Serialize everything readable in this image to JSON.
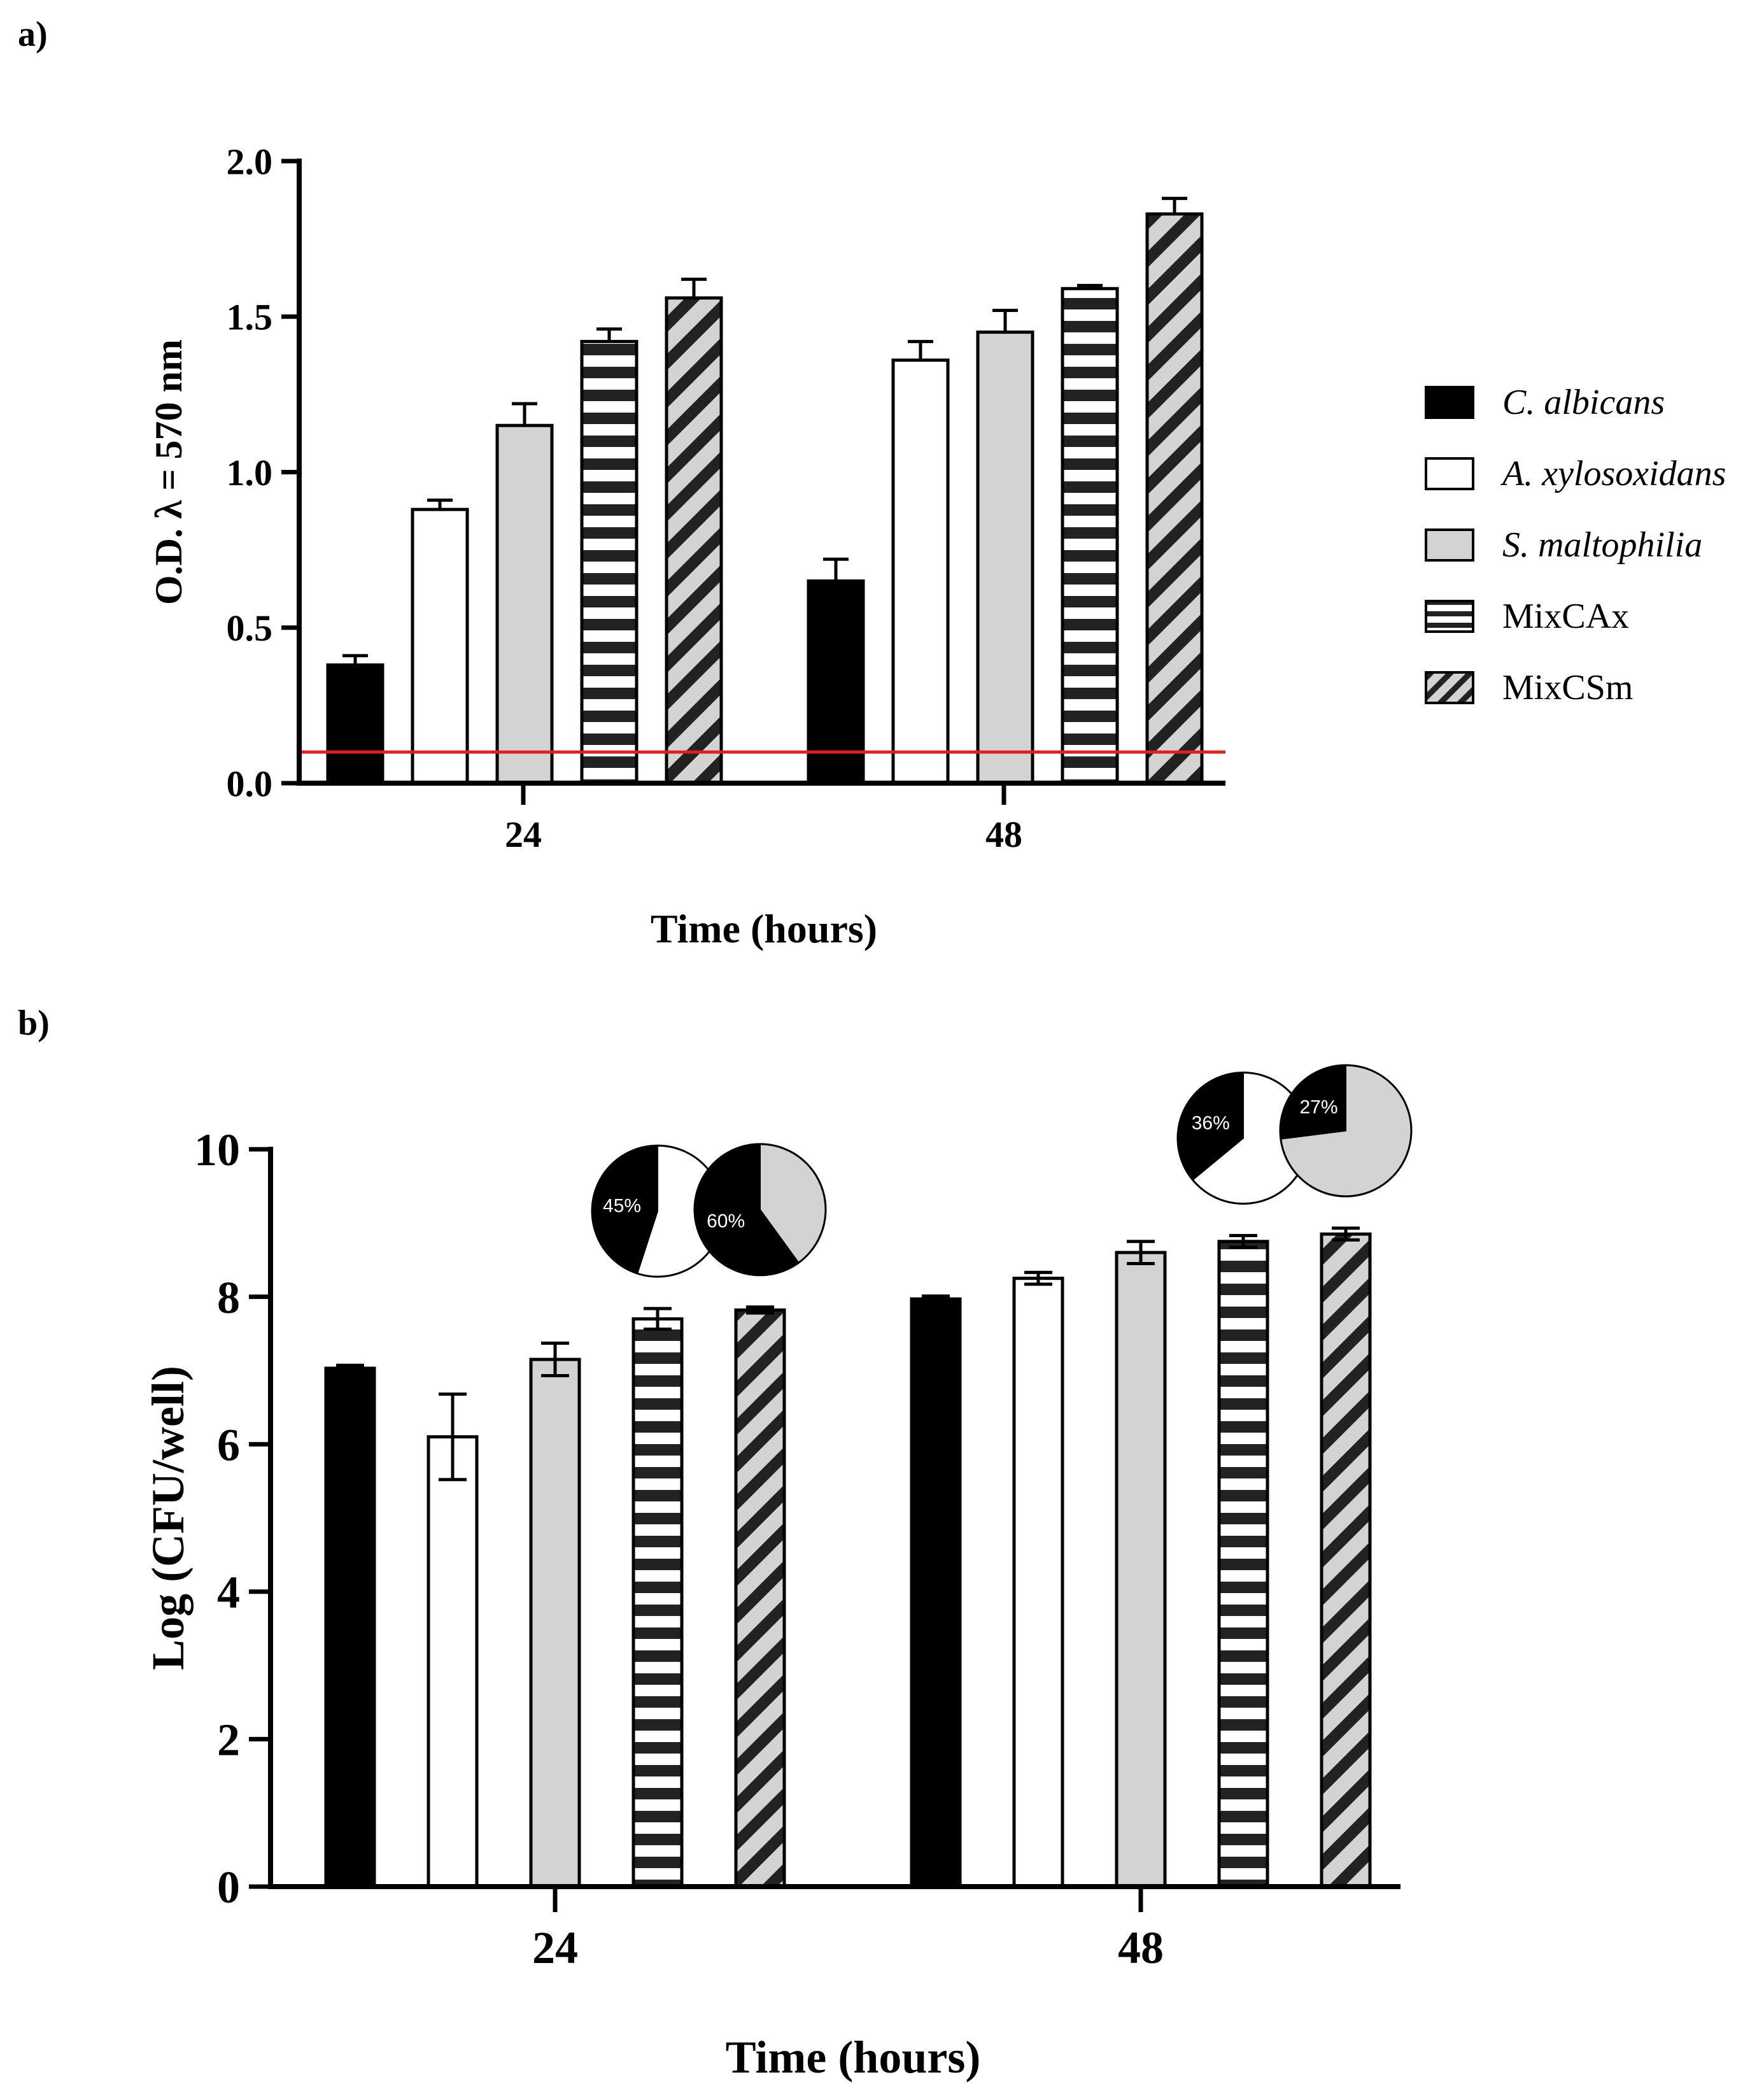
{
  "colors": {
    "c_albicans": "#000000",
    "a_xylosoxidans": "#ffffff",
    "s_maltophilia": "#d3d3d3",
    "stripe": "#222222",
    "threshold_line": "#e02020"
  },
  "legend": {
    "items": [
      {
        "label": "C. albicans",
        "italic": true,
        "pattern": "solid-black"
      },
      {
        "label": "A. xylosoxidans",
        "italic": true,
        "pattern": "white"
      },
      {
        "label": "S. maltophilia",
        "italic": true,
        "pattern": "grey"
      },
      {
        "label": "MixCAx",
        "italic": false,
        "pattern": "horizontal-stripes"
      },
      {
        "label": "MixCSm",
        "italic": false,
        "pattern": "diagonal-stripes"
      }
    ]
  },
  "chart_data": [
    {
      "panel_label": "a)",
      "type": "bar",
      "xlabel": "Time (hours)",
      "ylabel": "O.D. λ = 570 nm",
      "ylim": [
        0,
        2.0
      ],
      "yticks": [
        "0.0",
        "0.5",
        "1.0",
        "1.5",
        "2.0"
      ],
      "categories": [
        "24",
        "48"
      ],
      "threshold": 0.1,
      "series": [
        {
          "name": "C. albicans",
          "values": [
            0.38,
            0.65
          ],
          "errors": [
            0.03,
            0.07
          ]
        },
        {
          "name": "A. xylosoxidans",
          "values": [
            0.88,
            1.36
          ],
          "errors": [
            0.03,
            0.06
          ]
        },
        {
          "name": "S. maltophilia",
          "values": [
            1.15,
            1.45
          ],
          "errors": [
            0.07,
            0.07
          ]
        },
        {
          "name": "MixCAx",
          "values": [
            1.42,
            1.59
          ],
          "errors": [
            0.04,
            0.01
          ]
        },
        {
          "name": "MixCSm",
          "values": [
            1.56,
            1.83
          ],
          "errors": [
            0.06,
            0.05
          ]
        }
      ]
    },
    {
      "panel_label": "b)",
      "type": "bar",
      "xlabel": "Time (hours)",
      "ylabel": "Log (CFU/well)",
      "ylim": [
        0,
        10
      ],
      "yticks": [
        "0",
        "2",
        "4",
        "6",
        "8",
        "10"
      ],
      "categories": [
        "24",
        "48"
      ],
      "series": [
        {
          "name": "C. albicans",
          "values": [
            7.03,
            7.97
          ],
          "errors": [
            0.04,
            0.04
          ]
        },
        {
          "name": "A. xylosoxidans",
          "values": [
            6.1,
            8.25
          ],
          "errors": [
            0.58,
            0.08
          ]
        },
        {
          "name": "S. maltophilia",
          "values": [
            7.15,
            8.6
          ],
          "errors": [
            0.22,
            0.15
          ]
        },
        {
          "name": "MixCAx",
          "values": [
            7.7,
            8.75
          ],
          "errors": [
            0.14,
            0.08
          ]
        },
        {
          "name": "MixCSm",
          "values": [
            7.82,
            8.85
          ],
          "errors": [
            0.04,
            0.08
          ]
        }
      ],
      "pies": [
        {
          "label": "45%",
          "fraction": 0.45,
          "complement": "a_xylosoxidans",
          "category": "24",
          "above_series": "MixCAx"
        },
        {
          "label": "60%",
          "fraction": 0.6,
          "complement": "s_maltophilia",
          "category": "24",
          "above_series": "MixCSm"
        },
        {
          "label": "36%",
          "fraction": 0.36,
          "complement": "a_xylosoxidans",
          "category": "48",
          "above_series": "MixCAx"
        },
        {
          "label": "27%",
          "fraction": 0.27,
          "complement": "s_maltophilia",
          "category": "48",
          "above_series": "MixCSm"
        }
      ]
    }
  ]
}
